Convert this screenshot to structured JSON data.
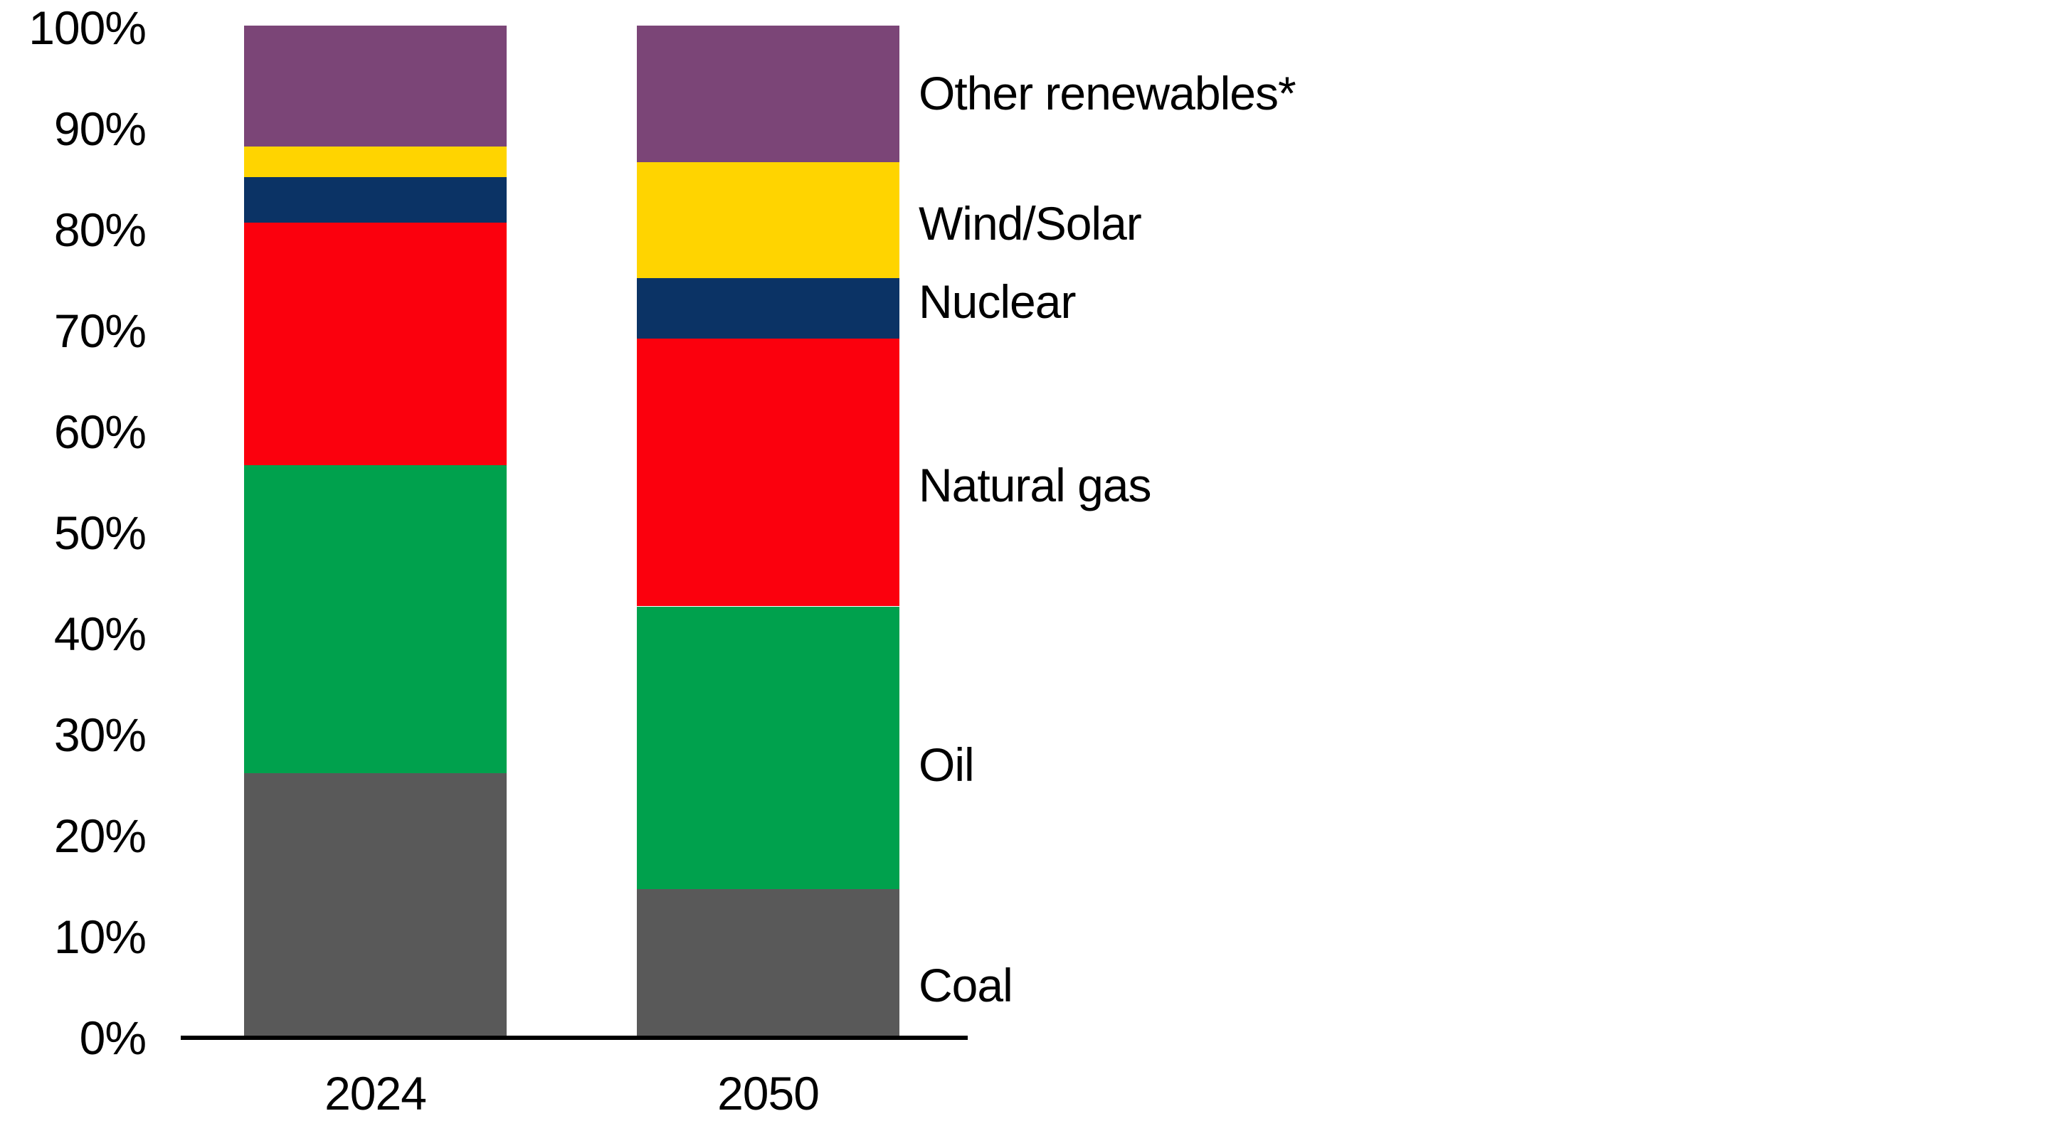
{
  "chart_data": {
    "type": "bar",
    "stacked": true,
    "title": "",
    "xlabel": "",
    "ylabel": "",
    "categories": [
      "2024",
      "2050"
    ],
    "series": [
      {
        "name": "Coal",
        "color": "#595959",
        "values": [
          26,
          14.5
        ],
        "label_y_pct": 5.0
      },
      {
        "name": "Oil",
        "color": "#00A14D",
        "values": [
          30.5,
          28
        ],
        "label_y_pct": 26.8
      },
      {
        "name": "Natural gas",
        "color": "#FB000D",
        "values": [
          24,
          26.5
        ],
        "label_y_pct": 54.5
      },
      {
        "name": "Nuclear",
        "color": "#0B3365",
        "values": [
          4.5,
          6
        ],
        "label_y_pct": 72.7
      },
      {
        "name": "Wind/Solar",
        "color": "#FFD400",
        "values": [
          3,
          11.5
        ],
        "label_y_pct": 80.4
      },
      {
        "name": "Other renewables*",
        "color": "#7B4577",
        "values": [
          12,
          13.5
        ],
        "label_y_pct": 93.3
      }
    ],
    "stack_order_bottom_to_top": [
      "Coal",
      "Oil",
      "Natural gas",
      "Nuclear",
      "Wind/Solar",
      "Other renewables*"
    ],
    "ylim": [
      0,
      100
    ],
    "yticks": [
      "0%",
      "10%",
      "20%",
      "30%",
      "40%",
      "50%",
      "60%",
      "70%",
      "80%",
      "90%",
      "100%"
    ],
    "grid": false,
    "legend_position": "right-inline-labels"
  }
}
